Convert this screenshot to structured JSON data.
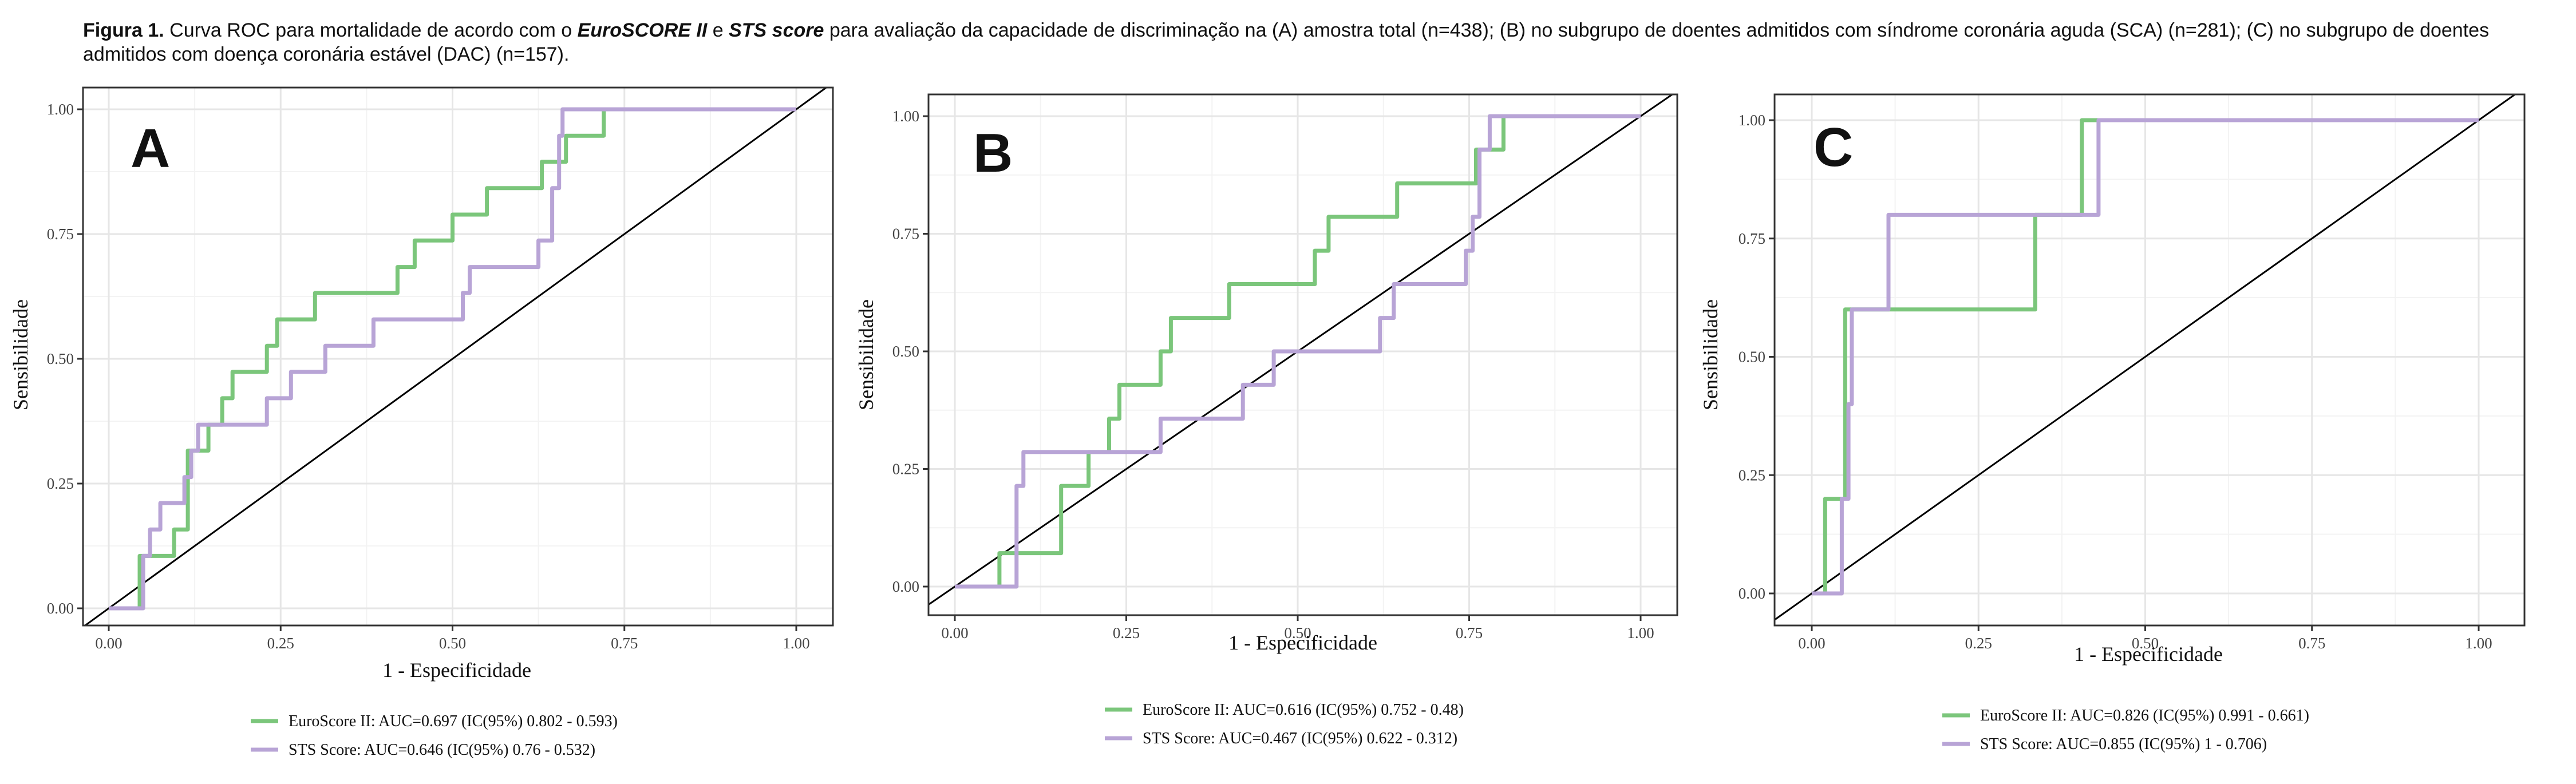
{
  "caption": {
    "label": "Figura 1.",
    "p1": " Curva ROC para mortalidade de acordo com o ",
    "euro": "EuroSCORE II",
    "p2": " e ",
    "sts": "STS score",
    "p3": " para avaliação da capacidade de discriminação na (A) amostra total (n=438); (B) no subgrupo de doentes admitidos com síndrome coronária aguda (SCA) (n=281); (C) no subgrupo de doentes admitidos com doença coronária estável (DAC) (n=157)."
  },
  "colors": {
    "euro": "#7bc67b",
    "sts": "#b8a4d6",
    "diagonal": "#000000",
    "grid_major": "#e6e6e6",
    "grid_minor": "#f3f3f3",
    "panel_border": "#333333"
  },
  "chart_data": [
    {
      "type": "line",
      "panel": "A",
      "xlabel": "1 - Especificidade",
      "ylabel": "Sensibilidade",
      "xlim": [
        0,
        1
      ],
      "ylim": [
        0,
        1
      ],
      "x_ticks": [
        "0.00",
        "0.25",
        "0.50",
        "0.75",
        "1.00"
      ],
      "y_ticks": [
        "0.00",
        "0.25",
        "0.50",
        "0.75",
        "1.00"
      ],
      "grid": true,
      "reference_line": [
        [
          0,
          0
        ],
        [
          1,
          1
        ]
      ],
      "series": [
        {
          "name": "EuroScore II: AUC=0.697 (IC(95%) 0.802 - 0.593)",
          "color_key": "euro",
          "x": [
            0,
            0.045,
            0.045,
            0.075,
            0.075,
            0.095,
            0.095,
            0.115,
            0.115,
            0.13,
            0.13,
            0.145,
            0.145,
            0.165,
            0.165,
            0.18,
            0.18,
            0.23,
            0.23,
            0.245,
            0.245,
            0.3,
            0.3,
            0.42,
            0.42,
            0.445,
            0.445,
            0.5,
            0.5,
            0.52,
            0.52,
            0.55,
            0.55,
            0.63,
            0.63,
            0.665,
            0.665,
            0.72,
            0.72,
            1
          ],
          "y": [
            0,
            0,
            0.105,
            0.105,
            0.105,
            0.105,
            0.158,
            0.158,
            0.316,
            0.316,
            0.316,
            0.316,
            0.368,
            0.368,
            0.421,
            0.421,
            0.474,
            0.474,
            0.526,
            0.526,
            0.579,
            0.579,
            0.632,
            0.632,
            0.684,
            0.684,
            0.737,
            0.737,
            0.789,
            0.789,
            0.789,
            0.789,
            0.842,
            0.842,
            0.895,
            0.895,
            0.947,
            0.947,
            1,
            1
          ]
        },
        {
          "name": "STS Score: AUC=0.646 (IC(95%) 0.76 - 0.532)",
          "color_key": "sts",
          "x": [
            0,
            0.05,
            0.05,
            0.06,
            0.06,
            0.075,
            0.075,
            0.11,
            0.11,
            0.12,
            0.12,
            0.13,
            0.13,
            0.23,
            0.23,
            0.265,
            0.265,
            0.315,
            0.315,
            0.385,
            0.385,
            0.515,
            0.515,
            0.525,
            0.525,
            0.625,
            0.625,
            0.645,
            0.645,
            0.655,
            0.655,
            0.66,
            0.66,
            0.665,
            0.665,
            0.725,
            0.725,
            1
          ],
          "y": [
            0,
            0,
            0.105,
            0.105,
            0.158,
            0.158,
            0.211,
            0.211,
            0.263,
            0.263,
            0.316,
            0.316,
            0.368,
            0.368,
            0.421,
            0.421,
            0.474,
            0.474,
            0.526,
            0.526,
            0.579,
            0.579,
            0.632,
            0.632,
            0.684,
            0.684,
            0.737,
            0.737,
            0.842,
            0.842,
            0.947,
            0.947,
            1,
            1,
            1,
            1,
            1,
            1
          ]
        }
      ]
    },
    {
      "type": "line",
      "panel": "B",
      "xlabel": "1 - Especificidade",
      "ylabel": "Sensibilidade",
      "xlim": [
        0,
        1
      ],
      "ylim": [
        0,
        1
      ],
      "x_ticks": [
        "0.00",
        "0.25",
        "0.50",
        "0.75",
        "1.00"
      ],
      "y_ticks": [
        "0.00",
        "0.25",
        "0.50",
        "0.75",
        "1.00"
      ],
      "grid": true,
      "reference_line": [
        [
          0,
          0
        ],
        [
          1,
          1
        ]
      ],
      "series": [
        {
          "name": "EuroScore II: AUC=0.616 (IC(95%) 0.752 - 0.48)",
          "color_key": "euro",
          "x": [
            0,
            0.065,
            0.065,
            0.155,
            0.155,
            0.195,
            0.195,
            0.225,
            0.225,
            0.24,
            0.24,
            0.3,
            0.3,
            0.315,
            0.315,
            0.4,
            0.4,
            0.525,
            0.525,
            0.545,
            0.545,
            0.645,
            0.645,
            0.76,
            0.76,
            0.8,
            0.8,
            0.84,
            0.84,
            1
          ],
          "y": [
            0,
            0,
            0.071,
            0.071,
            0.214,
            0.214,
            0.286,
            0.286,
            0.357,
            0.357,
            0.429,
            0.429,
            0.5,
            0.5,
            0.571,
            0.571,
            0.643,
            0.643,
            0.714,
            0.714,
            0.786,
            0.786,
            0.857,
            0.857,
            0.929,
            0.929,
            1,
            1,
            1,
            1
          ]
        },
        {
          "name": "STS Score: AUC=0.467 (IC(95%) 0.622 - 0.312)",
          "color_key": "sts",
          "x": [
            0,
            0.09,
            0.09,
            0.1,
            0.1,
            0.3,
            0.3,
            0.42,
            0.42,
            0.465,
            0.465,
            0.62,
            0.62,
            0.64,
            0.64,
            0.745,
            0.745,
            0.755,
            0.755,
            0.765,
            0.765,
            0.78,
            0.78,
            1
          ],
          "y": [
            0,
            0,
            0.214,
            0.214,
            0.286,
            0.286,
            0.357,
            0.357,
            0.429,
            0.429,
            0.5,
            0.5,
            0.571,
            0.571,
            0.643,
            0.643,
            0.714,
            0.714,
            0.786,
            0.786,
            0.929,
            0.929,
            1,
            1
          ]
        }
      ]
    },
    {
      "type": "line",
      "panel": "C",
      "xlabel": "1 - Especificidade",
      "ylabel": "Sensibilidade",
      "xlim": [
        0,
        1
      ],
      "ylim": [
        0,
        1
      ],
      "x_ticks": [
        "0.00",
        "0.25",
        "0.50",
        "0.75",
        "1.00"
      ],
      "y_ticks": [
        "0.00",
        "0.25",
        "0.50",
        "0.75",
        "1.00"
      ],
      "grid": true,
      "reference_line": [
        [
          0,
          0
        ],
        [
          1,
          1
        ]
      ],
      "series": [
        {
          "name": "EuroScore II: AUC=0.826 (IC(95%) 0.991 - 0.661)",
          "color_key": "euro",
          "x": [
            0.02,
            0.02,
            0.05,
            0.05,
            0.335,
            0.335,
            0.405,
            0.405,
            1
          ],
          "y": [
            0,
            0.2,
            0.2,
            0.6,
            0.6,
            0.8,
            0.8,
            1,
            1
          ]
        },
        {
          "name": "STS Score: AUC=0.855 (IC(95%) 1 - 0.706)",
          "color_key": "sts",
          "x": [
            0,
            0.045,
            0.045,
            0.055,
            0.055,
            0.06,
            0.06,
            0.065,
            0.065,
            0.115,
            0.115,
            0.43,
            0.43,
            1
          ],
          "y": [
            0,
            0,
            0.2,
            0.2,
            0.4,
            0.4,
            0.6,
            0.6,
            0.6,
            0.6,
            0.8,
            0.8,
            1,
            1
          ]
        }
      ]
    }
  ]
}
